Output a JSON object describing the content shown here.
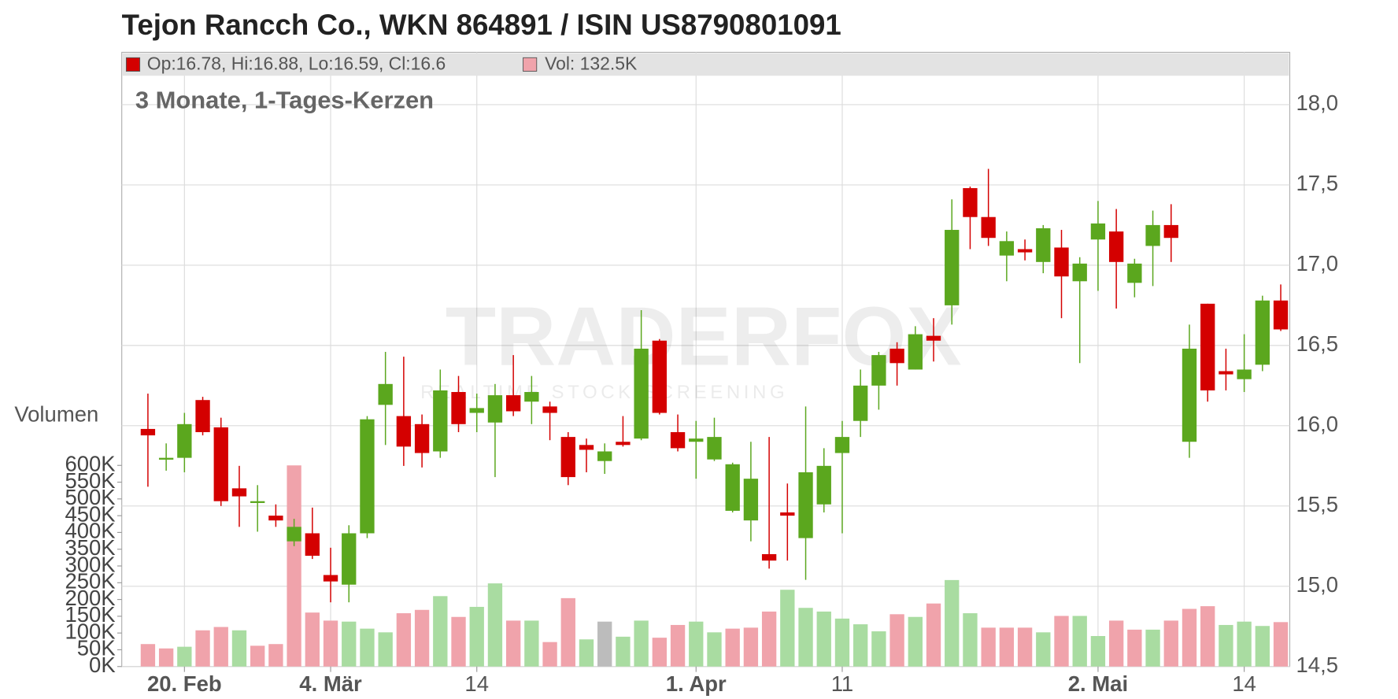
{
  "chart_data": {
    "type": "candlestick",
    "title": "Tejon Rancch Co., WKN 864891 / ISIN US8790801091",
    "legend_price": "Op:16.78, Hi:16.88, Lo:16.59, Cl:16.6",
    "legend_volume": "Vol: 132.5K",
    "subtitle": "3 Monate, 1-Tages-Kerzen",
    "y2_label": "Volumen",
    "watermark": {
      "title": "TRADERFOX",
      "tagline": "REALTIME STOCK SCREENING"
    },
    "up_color": "#5ba71e",
    "down_color": "#d40000",
    "categories": [
      null,
      null,
      "20. Feb",
      null,
      null,
      null,
      null,
      null,
      null,
      null,
      "4. Mär",
      null,
      null,
      null,
      null,
      null,
      null,
      null,
      "14",
      null,
      null,
      null,
      null,
      null,
      null,
      null,
      null,
      null,
      null,
      null,
      "1. Apr",
      null,
      null,
      null,
      null,
      null,
      null,
      null,
      "11",
      null,
      null,
      null,
      null,
      null,
      null,
      null,
      null,
      null,
      null,
      null,
      null,
      null,
      "2. Mai",
      null,
      null,
      null,
      null,
      null,
      null,
      null,
      "14",
      null,
      null
    ],
    "open": [
      15.98,
      15.79,
      15.8,
      16.16,
      15.99,
      15.61,
      15.52,
      15.44,
      15.28,
      15.33,
      15.07,
      15.01,
      15.33,
      16.13,
      16.06,
      16.01,
      15.84,
      16.21,
      16.08,
      16.02,
      16.19,
      16.15,
      16.12,
      15.93,
      15.88,
      15.78,
      15.9,
      15.92,
      16.53,
      15.96,
      15.9,
      15.79,
      15.47,
      15.41,
      15.2,
      15.46,
      15.3,
      15.51,
      15.83,
      16.03,
      16.25,
      16.48,
      16.35,
      16.56,
      16.75,
      17.48,
      17.3,
      17.06,
      17.1,
      17.02,
      17.11,
      16.9,
      17.16,
      17.21,
      16.89,
      17.12,
      17.25,
      15.9,
      16.76,
      16.34,
      16.29,
      16.38,
      16.78
    ],
    "high": [
      16.2,
      15.89,
      16.08,
      16.18,
      16.05,
      15.75,
      15.63,
      15.51,
      15.42,
      15.49,
      15.24,
      15.38,
      16.06,
      16.46,
      16.43,
      16.07,
      16.35,
      16.31,
      16.2,
      16.26,
      16.44,
      16.31,
      16.15,
      15.96,
      15.92,
      15.89,
      16.06,
      16.72,
      16.54,
      16.07,
      16.03,
      16.05,
      15.77,
      15.9,
      15.93,
      15.64,
      16.12,
      15.86,
      16.03,
      16.35,
      16.46,
      16.52,
      16.62,
      16.67,
      17.41,
      17.49,
      17.6,
      17.21,
      17.16,
      17.25,
      17.22,
      17.05,
      17.4,
      17.35,
      17.04,
      17.34,
      17.38,
      16.63,
      16.76,
      16.48,
      16.57,
      16.81,
      16.88
    ],
    "low": [
      15.62,
      15.72,
      15.71,
      15.94,
      15.5,
      15.37,
      15.34,
      15.37,
      15.25,
      15.17,
      14.9,
      14.9,
      15.3,
      15.88,
      15.75,
      15.74,
      15.8,
      15.96,
      15.96,
      15.68,
      16.06,
      16.01,
      15.91,
      15.63,
      15.71,
      15.7,
      15.87,
      15.91,
      16.07,
      15.84,
      15.67,
      15.78,
      15.46,
      15.28,
      15.11,
      15.16,
      15.04,
      15.46,
      15.33,
      15.93,
      16.1,
      16.25,
      16.35,
      16.4,
      16.63,
      17.1,
      17.12,
      16.9,
      17.03,
      16.95,
      16.67,
      16.39,
      16.84,
      16.73,
      16.8,
      16.87,
      17.02,
      15.8,
      16.15,
      16.22,
      16.21,
      16.34,
      16.59
    ],
    "close": [
      15.94,
      15.8,
      16.01,
      15.96,
      15.53,
      15.56,
      15.53,
      15.41,
      15.37,
      15.19,
      15.03,
      15.33,
      16.04,
      16.26,
      15.87,
      15.83,
      16.22,
      16.01,
      16.11,
      16.19,
      16.09,
      16.21,
      16.08,
      15.68,
      15.85,
      15.84,
      15.88,
      16.48,
      16.08,
      15.86,
      15.92,
      15.93,
      15.76,
      15.67,
      15.16,
      15.44,
      15.71,
      15.75,
      15.93,
      16.25,
      16.44,
      16.39,
      16.57,
      16.53,
      17.22,
      17.3,
      17.17,
      17.15,
      17.08,
      17.23,
      16.93,
      17.01,
      17.26,
      17.02,
      17.01,
      17.25,
      17.17,
      16.48,
      16.22,
      16.32,
      16.35,
      16.78,
      16.6
    ],
    "volume": [
      67000,
      54000,
      59000,
      108000,
      118000,
      108000,
      62000,
      67000,
      600000,
      161000,
      137000,
      134000,
      113000,
      102000,
      159000,
      169000,
      210000,
      148000,
      178000,
      248000,
      137000,
      137000,
      73000,
      204000,
      81000,
      134000,
      89000,
      137000,
      86000,
      124000,
      134000,
      102000,
      113000,
      116000,
      164000,
      229000,
      175000,
      164000,
      143000,
      126000,
      105000,
      156000,
      148000,
      188000,
      258000,
      159000,
      116000,
      116000,
      116000,
      102000,
      151000,
      151000,
      91000,
      137000,
      110000,
      110000,
      137000,
      172000,
      180000,
      124000,
      134000,
      121000,
      132500
    ],
    "volume_colors": [
      "#f0a3ab",
      "#f0a3ab",
      "#a9dca1",
      "#f0a3ab",
      "#f0a3ab",
      "#a9dca1",
      "#f0a3ab",
      "#f0a3ab",
      "#f0a3ab",
      "#f0a3ab",
      "#f0a3ab",
      "#a9dca1",
      "#a9dca1",
      "#a9dca1",
      "#f0a3ab",
      "#f0a3ab",
      "#a9dca1",
      "#f0a3ab",
      "#a9dca1",
      "#a9dca1",
      "#f0a3ab",
      "#a9dca1",
      "#f0a3ab",
      "#f0a3ab",
      "#a9dca1",
      "#bcbcbc",
      "#a9dca1",
      "#a9dca1",
      "#f0a3ab",
      "#f0a3ab",
      "#a9dca1",
      "#a9dca1",
      "#f0a3ab",
      "#f0a3ab",
      "#f0a3ab",
      "#a9dca1",
      "#a9dca1",
      "#a9dca1",
      "#a9dca1",
      "#a9dca1",
      "#a9dca1",
      "#f0a3ab",
      "#a9dca1",
      "#f0a3ab",
      "#a9dca1",
      "#a9dca1",
      "#f0a3ab",
      "#f0a3ab",
      "#f0a3ab",
      "#a9dca1",
      "#f0a3ab",
      "#a9dca1",
      "#a9dca1",
      "#f0a3ab",
      "#f0a3ab",
      "#a9dca1",
      "#f0a3ab",
      "#f0a3ab",
      "#f0a3ab",
      "#a9dca1",
      "#a9dca1",
      "#a9dca1",
      "#f0a3ab"
    ],
    "ylim": [
      14.5,
      18.18
    ],
    "yticks": [
      {
        "value": 14.5,
        "label": "14,5"
      },
      {
        "value": 15.0,
        "label": "15,0"
      },
      {
        "value": 15.5,
        "label": "15,5"
      },
      {
        "value": 16.0,
        "label": "16,0"
      },
      {
        "value": 16.5,
        "label": "16,5"
      },
      {
        "value": 17.0,
        "label": "17,0"
      },
      {
        "value": 17.5,
        "label": "17,5"
      },
      {
        "value": 18.0,
        "label": "18,0"
      }
    ],
    "y2lim": [
      0,
      600000
    ],
    "y2ticks": [
      {
        "value": 0,
        "label": "0K"
      },
      {
        "value": 50000,
        "label": "50K"
      },
      {
        "value": 100000,
        "label": "100K"
      },
      {
        "value": 150000,
        "label": "150K"
      },
      {
        "value": 200000,
        "label": "200K"
      },
      {
        "value": 250000,
        "label": "250K"
      },
      {
        "value": 300000,
        "label": "300K"
      },
      {
        "value": 350000,
        "label": "350K"
      },
      {
        "value": 400000,
        "label": "400K"
      },
      {
        "value": 450000,
        "label": "450K"
      },
      {
        "value": 500000,
        "label": "500K"
      },
      {
        "value": 550000,
        "label": "550K"
      },
      {
        "value": 600000,
        "label": "600K"
      }
    ],
    "grid": true
  }
}
